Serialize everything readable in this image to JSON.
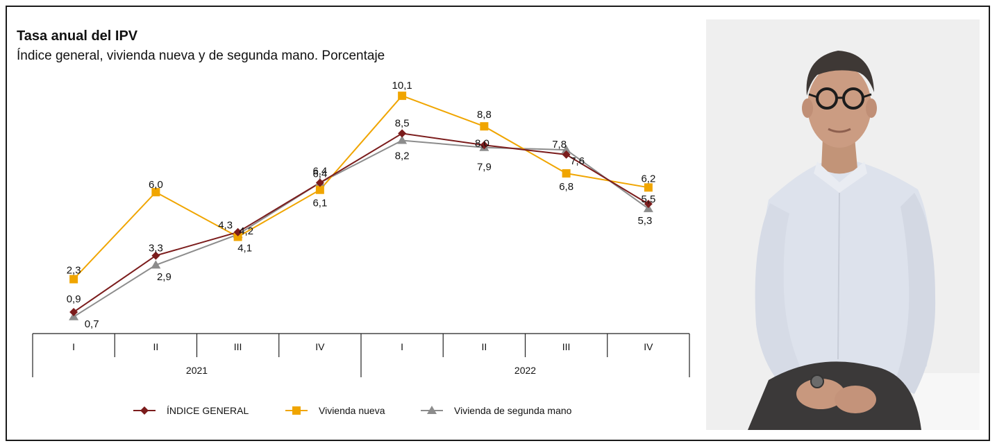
{
  "chart_data": {
    "type": "line",
    "title": "Tasa anual del IPV",
    "subtitle": "Índice general, vivienda nueva y de segunda mano. Porcentaje",
    "categories": [
      "I",
      "II",
      "III",
      "IV",
      "I",
      "II",
      "III",
      "IV"
    ],
    "groups": [
      {
        "label": "2021",
        "span": [
          0,
          3
        ]
      },
      {
        "label": "2022",
        "span": [
          4,
          7
        ]
      }
    ],
    "ylim": [
      0,
      10.5
    ],
    "grid": false,
    "legend_position": "bottom",
    "series": [
      {
        "name": "ÍNDICE GENERAL",
        "marker": "diamond",
        "color": "#7b1c1c",
        "values": [
          0.9,
          3.3,
          4.3,
          6.4,
          8.5,
          8.0,
          7.6,
          5.5
        ],
        "labels": [
          "0,9",
          "3,3",
          "4,3",
          "6,4",
          "8,5",
          "8,0",
          "7,6",
          "5,5"
        ]
      },
      {
        "name": "Vivienda nueva",
        "marker": "square",
        "color": "#f0a500",
        "values": [
          2.3,
          6.0,
          4.1,
          6.1,
          10.1,
          8.8,
          6.8,
          6.2
        ],
        "labels": [
          "2,3",
          "6,0",
          "4,1",
          "6,1",
          "10,1",
          "8,8",
          "6,8",
          "6,2"
        ]
      },
      {
        "name": "Vivienda de segunda mano",
        "marker": "triangle",
        "color": "#8c8c8c",
        "values": [
          0.7,
          2.9,
          4.2,
          6.4,
          8.2,
          7.9,
          7.8,
          5.3
        ],
        "labels": [
          "0,7",
          "2,9",
          "4,2",
          "6,4",
          "8,2",
          "7,9",
          "7,8",
          "5,3"
        ]
      }
    ]
  },
  "photo": {
    "subject": "portrait-photo",
    "colors": {
      "background": "#eeeeee",
      "shirt": "#dfe3ec",
      "trousers": "#3a3838",
      "skin": "#c99a80",
      "hair": "#3b3532"
    }
  }
}
